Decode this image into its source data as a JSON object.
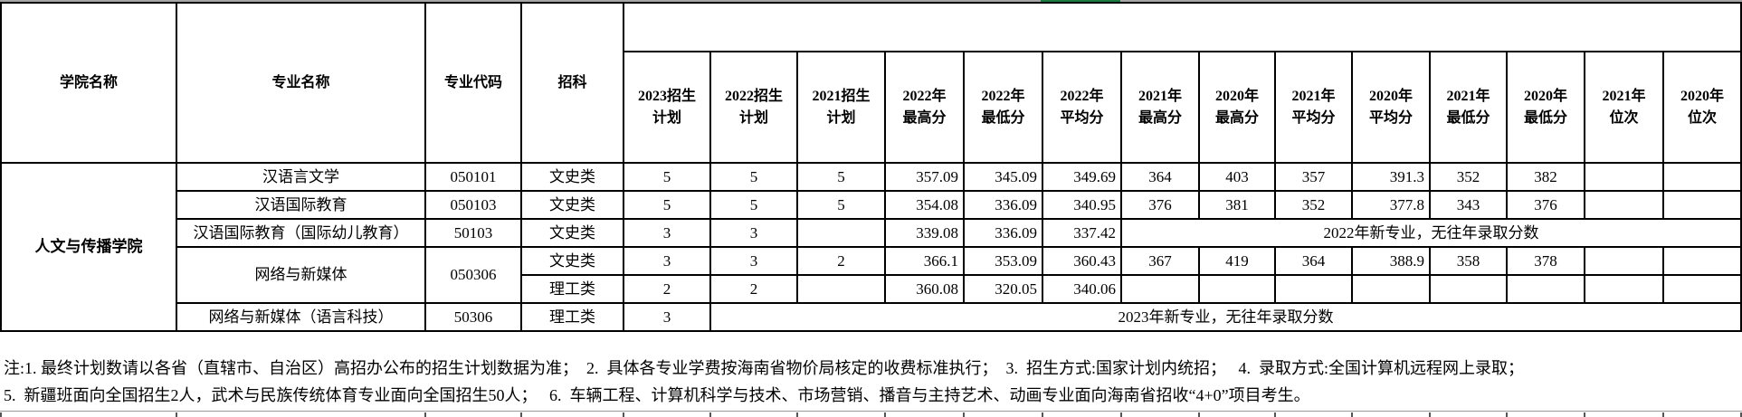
{
  "scrollbar": {
    "track_color": "#a6a6a6",
    "thumb_color": "#1b7b40"
  },
  "table": {
    "header": {
      "college": "学院名称",
      "major": "专业名称",
      "code": "专业代码",
      "subject": "招科",
      "year_cols": [
        "2023招生\n计划",
        "2022招生\n计划",
        "2021招生\n计划",
        "2022年\n最高分",
        "2022年\n最低分",
        "2022年\n平均分",
        "2021年\n最高分",
        "2020年\n最高分",
        "2021年\n平均分",
        "2020年\n平均分",
        "2021年\n最低分",
        "2020年\n最低分",
        "2021年\n位次",
        "2020年\n位次"
      ]
    },
    "college_name": "人文与传播学院",
    "new2022_note": "2022年新专业，无往年录取分数",
    "new2023_note": "2023年新专业，无往年录取分数",
    "rows": [
      [
        "汉语言文学",
        "050101",
        "文史类",
        "5",
        "5",
        "5",
        "357.09",
        "345.09",
        "349.69",
        "364",
        "403",
        "357",
        "391.3",
        "352",
        "382",
        "",
        ""
      ],
      [
        "汉语国际教育",
        "050103",
        "文史类",
        "5",
        "5",
        "5",
        "354.08",
        "336.09",
        "340.95",
        "376",
        "381",
        "352",
        "377.8",
        "343",
        "376",
        "",
        ""
      ],
      [
        "汉语国际教育（国际幼儿教育）",
        "50103",
        "文史类",
        "3",
        "3",
        "",
        "339.08",
        "336.09",
        "337.42"
      ],
      [
        "网络与新媒体",
        "050306",
        "文史类",
        "3",
        "3",
        "2",
        "366.1",
        "353.09",
        "360.43",
        "367",
        "419",
        "364",
        "388.9",
        "358",
        "378",
        "",
        ""
      ],
      [
        "理工类",
        "2",
        "2",
        "",
        "360.08",
        "320.05",
        "340.06",
        "",
        "",
        "",
        "",
        "",
        "",
        "",
        ""
      ],
      [
        "网络与新媒体（语言科技）",
        "50306",
        "理工类",
        "3"
      ]
    ]
  },
  "notes": {
    "line1": "注:1. 最终计划数请以各省（直辖市、自治区）高招办公布的招生计划数据为准；  2.  具体各专业学费按海南省物价局核定的收费标准执行；  3.  招生方式:国家计划内统招；   4.  录取方式:全国计算机远程网上录取；",
    "line2": "5.  新疆班面向全国招生2人，武术与民族传统体育专业面向全国招生50人；   6.  车辆工程、计算机科学与技术、市场营销、播音与主持艺术、动画专业面向海南省招收“4+0”项目考生。"
  }
}
